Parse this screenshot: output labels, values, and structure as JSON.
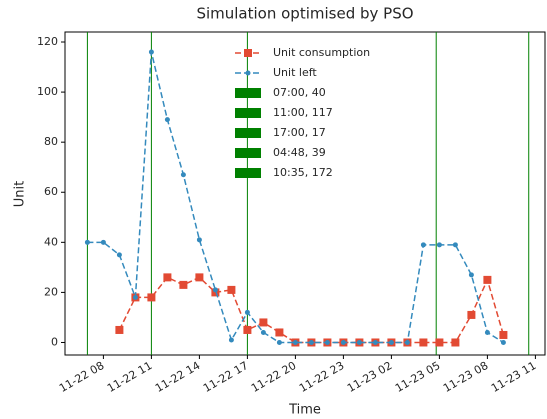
{
  "chart_data": {
    "type": "line",
    "title": "Simulation optimised by PSO",
    "x_label": "Time",
    "y_label": "Unit",
    "x": [
      "11-22 07",
      "11-22 08",
      "11-22 09",
      "11-22 10",
      "11-22 11",
      "11-22 12",
      "11-22 13",
      "11-22 14",
      "11-22 15",
      "11-22 16",
      "11-22 17",
      "11-22 18",
      "11-22 19",
      "11-22 20",
      "11-22 21",
      "11-22 22",
      "11-22 23",
      "11-23 00",
      "11-23 01",
      "11-23 02",
      "11-23 03",
      "11-23 04",
      "11-23 05",
      "11-23 06",
      "11-23 07",
      "11-23 08",
      "11-23 09"
    ],
    "series": [
      {
        "name": "Unit consumption",
        "color": "#e24a33",
        "marker": "square",
        "values": [
          null,
          null,
          5,
          18,
          18,
          26,
          23,
          26,
          20,
          21,
          5,
          8,
          4,
          0,
          0,
          0,
          0,
          0,
          0,
          0,
          0,
          0,
          0,
          0,
          11,
          25,
          3
        ]
      },
      {
        "name": "Unit left",
        "color": "#348abd",
        "marker": "circle",
        "values": [
          40,
          40,
          35,
          18,
          116,
          89,
          67,
          41,
          21,
          1,
          12,
          4,
          0,
          0,
          0,
          0,
          0,
          0,
          0,
          0,
          0,
          39,
          39,
          39,
          27,
          4,
          0
        ]
      }
    ],
    "vlines": [
      {
        "label": "07:00, 40",
        "x": "11-22 07:00"
      },
      {
        "label": "11:00, 117",
        "x": "11-22 11:00"
      },
      {
        "label": "17:00, 17",
        "x": "11-22 17:00"
      },
      {
        "label": "04:48, 39",
        "x": "11-23 04:48"
      },
      {
        "label": "10:35, 172",
        "x": "11-23 10:35"
      }
    ],
    "vline_color": "#008000",
    "xlim": [
      "11-22 05:36",
      "11-23 11:36"
    ],
    "xticks": [
      "11-22 08",
      "11-22 11",
      "11-22 14",
      "11-22 17",
      "11-22 20",
      "11-22 23",
      "11-23 02",
      "11-23 05",
      "11-23 08",
      "11-23 11"
    ],
    "ylim": [
      -5,
      124
    ],
    "yticks": [
      0,
      20,
      40,
      60,
      80,
      100,
      120
    ],
    "grid": false,
    "legend": "upper center"
  }
}
